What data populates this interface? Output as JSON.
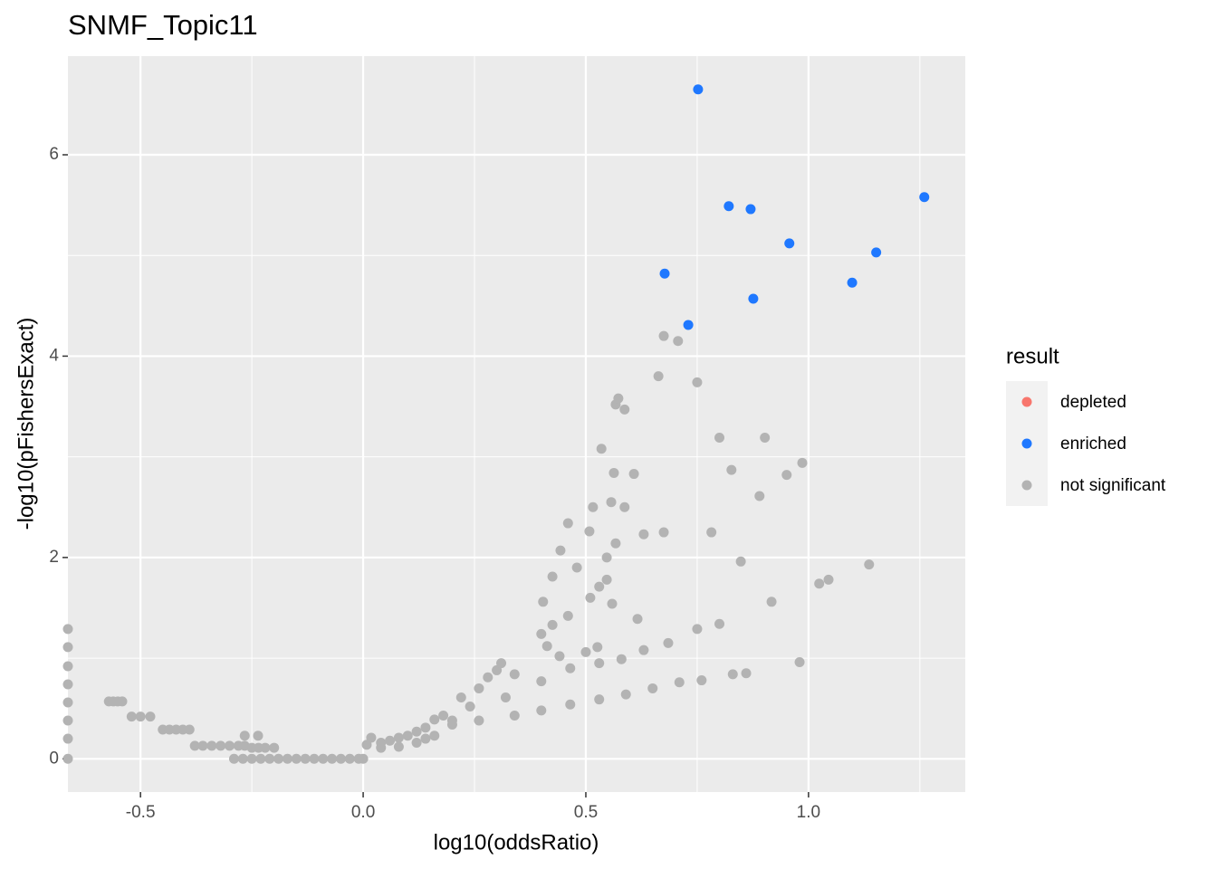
{
  "chart_data": {
    "type": "scatter",
    "title": "SNMF_Topic11",
    "x_label": "log10(oddsRatio)",
    "y_label": "-log10(pFishersExact)",
    "legend_title": "result",
    "legend_position": "right",
    "grid": true,
    "xlim": [
      -0.663,
      1.352
    ],
    "ylim": [
      -0.33,
      6.98
    ],
    "xticks": [
      -0.5,
      {
        "value": 0,
        "label": "0.0"
      },
      0.5,
      {
        "value": 1,
        "label": "1.0"
      }
    ],
    "yticks": [
      0,
      2,
      4,
      6
    ],
    "xminorticks": [
      -0.25,
      0.25,
      0.75,
      1.25
    ],
    "yminorticks": [
      1,
      3,
      5
    ],
    "series": [
      {
        "name": "depleted",
        "color": "#f8766d",
        "x": [],
        "y": []
      },
      {
        "name": "enriched",
        "color": "#1f78ff",
        "x": [
          0.752,
          0.821,
          0.87,
          0.957,
          1.26,
          1.152,
          1.098,
          0.677,
          0.876,
          0.73
        ],
        "y": [
          6.65,
          5.49,
          5.46,
          5.12,
          5.58,
          5.03,
          4.73,
          4.82,
          4.57,
          4.31
        ]
      },
      {
        "name": "not significant",
        "color": "#b3b3b3",
        "x": [
          -0.663,
          -0.663,
          -0.663,
          -0.663,
          -0.663,
          -0.663,
          -0.663,
          -0.663,
          -0.571,
          -0.561,
          -0.551,
          -0.541,
          -0.52,
          -0.5,
          -0.478,
          -0.45,
          -0.435,
          -0.42,
          -0.405,
          -0.39,
          -0.378,
          -0.36,
          -0.34,
          -0.32,
          -0.3,
          -0.28,
          -0.266,
          -0.266,
          -0.236,
          -0.25,
          -0.235,
          -0.22,
          -0.2,
          -0.29,
          -0.27,
          -0.25,
          -0.23,
          -0.21,
          -0.19,
          -0.17,
          -0.15,
          -0.13,
          -0.11,
          -0.09,
          -0.07,
          -0.05,
          -0.03,
          -0.01,
          0.0,
          0.008,
          0.14,
          0.2,
          0.26,
          0.34,
          0.4,
          0.465,
          0.53,
          0.59,
          0.65,
          0.71,
          0.76,
          0.83,
          0.86,
          0.98,
          0.24,
          0.32,
          0.4,
          0.465,
          0.53,
          0.58,
          0.63,
          0.685,
          0.75,
          0.8,
          0.22,
          0.28,
          0.34,
          0.4,
          0.425,
          0.46,
          0.51,
          0.53,
          0.547,
          0.567,
          0.587,
          0.608,
          0.63,
          0.404,
          0.425,
          0.443,
          0.46,
          0.48,
          0.508,
          0.516,
          0.535,
          0.547,
          0.557,
          0.563,
          0.567,
          0.573,
          0.587,
          0.663,
          0.675,
          0.707,
          0.75,
          0.675,
          0.782,
          0.8,
          0.827,
          0.848,
          0.89,
          0.902,
          0.917,
          0.951,
          0.986,
          1.024,
          1.045,
          1.136,
          0.413,
          0.441,
          0.526,
          0.5,
          0.559,
          0.616,
          0.018,
          0.04,
          0.06,
          0.08,
          0.1,
          0.12,
          0.14,
          0.16,
          0.18,
          0.2,
          0.04,
          0.08,
          0.12,
          0.16,
          0.26,
          0.3,
          0.31
        ],
        "y": [
          1.29,
          1.11,
          0.92,
          0.74,
          0.56,
          0.38,
          0.2,
          0.0,
          0.57,
          0.57,
          0.57,
          0.57,
          0.42,
          0.42,
          0.42,
          0.29,
          0.29,
          0.29,
          0.29,
          0.29,
          0.13,
          0.13,
          0.13,
          0.13,
          0.13,
          0.13,
          0.13,
          0.23,
          0.23,
          0.11,
          0.11,
          0.11,
          0.11,
          0,
          0,
          0,
          0,
          0,
          0,
          0,
          0,
          0,
          0,
          0,
          0,
          0,
          0,
          0,
          0,
          0.14,
          0.2,
          0.38,
          0.38,
          0.43,
          0.48,
          0.54,
          0.59,
          0.64,
          0.7,
          0.76,
          0.78,
          0.84,
          0.85,
          0.96,
          0.52,
          0.61,
          0.77,
          0.9,
          0.95,
          0.99,
          1.08,
          1.15,
          1.29,
          1.34,
          0.61,
          0.81,
          0.84,
          1.24,
          1.33,
          1.42,
          1.6,
          1.71,
          1.78,
          2.14,
          2.5,
          2.83,
          2.23,
          1.56,
          1.81,
          2.07,
          2.34,
          1.9,
          2.26,
          2.5,
          3.08,
          2.0,
          2.55,
          2.84,
          3.52,
          3.58,
          3.47,
          3.8,
          4.2,
          4.15,
          3.74,
          2.25,
          2.25,
          3.19,
          2.87,
          1.96,
          2.61,
          3.19,
          1.56,
          2.82,
          2.94,
          1.74,
          1.78,
          1.93,
          1.12,
          1.02,
          1.11,
          1.06,
          1.54,
          1.39,
          0.21,
          0.16,
          0.18,
          0.21,
          0.23,
          0.27,
          0.31,
          0.39,
          0.43,
          0.34,
          0.11,
          0.12,
          0.16,
          0.23,
          0.7,
          0.88,
          0.95
        ]
      }
    ]
  }
}
